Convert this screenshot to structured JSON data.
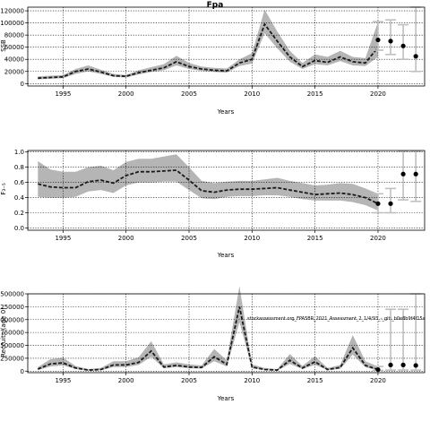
{
  "chart_data": [
    {
      "type": "line",
      "title": "Fpa",
      "xlabel": "Years",
      "ylabel": "SSB",
      "xlim": [
        1992.2,
        2023.7
      ],
      "ylim": [
        -4000,
        126000
      ],
      "xticks": [
        1995,
        2000,
        2005,
        2010,
        2015,
        2020
      ],
      "xtick_labels": [
        "1995",
        "2000",
        "2005",
        "2010",
        "2015",
        "2020"
      ],
      "yticks": [
        0,
        20000,
        40000,
        60000,
        80000,
        100000,
        120000
      ],
      "ytick_labels": [
        "0",
        "20000",
        "40000",
        "60000",
        "80000",
        "100000",
        "120000"
      ],
      "grid": true,
      "series": [
        {
          "style": "dashed line with grey confidence band",
          "x": [
            1993,
            1994,
            1995,
            1996,
            1997,
            1998,
            1999,
            2000,
            2001,
            2002,
            2003,
            2004,
            2005,
            2006,
            2007,
            2008,
            2009,
            2010,
            2011,
            2012,
            2013,
            2014,
            2015,
            2016,
            2017,
            2018,
            2019,
            2020
          ],
          "values": [
            9000,
            10000,
            11000,
            20000,
            24000,
            19000,
            13000,
            12000,
            18000,
            22000,
            26000,
            36000,
            28000,
            24000,
            22000,
            21000,
            34000,
            40000,
            98000,
            70000,
            44000,
            28000,
            38000,
            35000,
            44000,
            36000,
            34000,
            60000
          ],
          "lower": [
            7000,
            8000,
            9000,
            16000,
            20000,
            16000,
            11000,
            10000,
            15000,
            19000,
            22000,
            30000,
            24000,
            21000,
            19000,
            18000,
            29000,
            33000,
            83000,
            58000,
            36000,
            24000,
            32000,
            30000,
            37000,
            30000,
            29000,
            44000
          ],
          "upper": [
            12000,
            13000,
            14000,
            24000,
            30000,
            23000,
            16000,
            14000,
            22000,
            27000,
            32000,
            46000,
            34000,
            28000,
            26000,
            25000,
            40000,
            50000,
            122000,
            86000,
            54000,
            34000,
            48000,
            44000,
            54000,
            44000,
            42000,
            102000
          ]
        },
        {
          "style": "points with error bars",
          "x": [
            2020,
            2021,
            2022,
            2023
          ],
          "values": [
            72000,
            70000,
            62000,
            45000
          ],
          "lower": [
            55000,
            48000,
            40000,
            20000
          ],
          "upper": [
            102000,
            105000,
            97000,
            130000
          ]
        }
      ]
    },
    {
      "type": "line",
      "title": "",
      "xlabel": "Years",
      "ylabel": "F₃₋₅",
      "xlim": [
        1992.2,
        2023.7
      ],
      "ylim": [
        -0.03,
        1.02
      ],
      "xticks": [
        1995,
        2000,
        2005,
        2010,
        2015,
        2020
      ],
      "xtick_labels": [
        "1995",
        "2000",
        "2005",
        "2010",
        "2015",
        "2020"
      ],
      "yticks": [
        0,
        0.2,
        0.4,
        0.6,
        0.8,
        1.0
      ],
      "ytick_labels": [
        "0.0",
        "0.2",
        "0.4",
        "0.6",
        "0.8",
        "1.0"
      ],
      "grid": true,
      "series": [
        {
          "style": "dashed line with grey confidence band",
          "x": [
            1993,
            1994,
            1995,
            1996,
            1997,
            1998,
            1999,
            2000,
            2001,
            2002,
            2003,
            2004,
            2005,
            2006,
            2007,
            2008,
            2009,
            2010,
            2011,
            2012,
            2013,
            2014,
            2015,
            2016,
            2017,
            2018,
            2019,
            2020
          ],
          "values": [
            0.58,
            0.54,
            0.53,
            0.53,
            0.61,
            0.63,
            0.59,
            0.69,
            0.74,
            0.74,
            0.75,
            0.76,
            0.63,
            0.49,
            0.47,
            0.5,
            0.51,
            0.51,
            0.52,
            0.53,
            0.5,
            0.47,
            0.44,
            0.45,
            0.46,
            0.44,
            0.4,
            0.32
          ],
          "lower": [
            0.41,
            0.4,
            0.4,
            0.41,
            0.48,
            0.5,
            0.46,
            0.56,
            0.6,
            0.6,
            0.61,
            0.61,
            0.5,
            0.39,
            0.38,
            0.41,
            0.42,
            0.42,
            0.43,
            0.43,
            0.41,
            0.38,
            0.36,
            0.36,
            0.36,
            0.34,
            0.3,
            0.23
          ],
          "upper": [
            0.88,
            0.77,
            0.74,
            0.74,
            0.8,
            0.82,
            0.76,
            0.87,
            0.91,
            0.91,
            0.94,
            0.97,
            0.8,
            0.62,
            0.59,
            0.61,
            0.62,
            0.62,
            0.64,
            0.66,
            0.62,
            0.59,
            0.56,
            0.57,
            0.59,
            0.58,
            0.52,
            0.45
          ]
        },
        {
          "style": "points with error bars",
          "x": [
            2020,
            2021,
            2022,
            2023
          ],
          "values": [
            0.32,
            0.32,
            0.71,
            0.71
          ],
          "lower": [
            0.2,
            0.2,
            0.37,
            0.35
          ],
          "upper": [
            0.45,
            0.52,
            1.01,
            1.01
          ]
        }
      ]
    },
    {
      "type": "line",
      "title": "",
      "xlabel": "Years",
      "ylabel": "Recruits (age 0)",
      "xlim": [
        1992.2,
        2023.7
      ],
      "ylim": [
        -30000,
        1500000
      ],
      "xticks": [
        1995,
        2000,
        2005,
        2010,
        2015,
        2020
      ],
      "xtick_labels": [
        "1995",
        "2000",
        "2005",
        "2010",
        "2015",
        "2020"
      ],
      "yticks": [
        0,
        250000,
        500000,
        750000,
        1000000,
        1250000,
        1500000
      ],
      "ytick_labels": [
        "0",
        "250000",
        "500000",
        "750000",
        "1000000",
        "1250000",
        "1500000"
      ],
      "grid": true,
      "annotation": "stockassessment.org_FPA5BR_2021_Assessment_2_1/4/93_-_git:_b0e8b9f4f15a",
      "series": [
        {
          "style": "dashed line with grey confidence band",
          "x": [
            1993,
            1994,
            1995,
            1996,
            1997,
            1998,
            1999,
            2000,
            2001,
            2002,
            2003,
            2004,
            2005,
            2006,
            2007,
            2008,
            2009,
            2010,
            2011,
            2012,
            2013,
            2014,
            2015,
            2016,
            2017,
            2018,
            2019,
            2020
          ],
          "values": [
            40000,
            140000,
            160000,
            60000,
            20000,
            30000,
            120000,
            120000,
            170000,
            390000,
            80000,
            110000,
            80000,
            70000,
            280000,
            130000,
            1250000,
            80000,
            30000,
            20000,
            210000,
            60000,
            180000,
            30000,
            70000,
            450000,
            110000,
            30000
          ],
          "lower": [
            20000,
            90000,
            110000,
            40000,
            10000,
            15000,
            80000,
            80000,
            120000,
            280000,
            55000,
            80000,
            55000,
            50000,
            190000,
            90000,
            950000,
            55000,
            20000,
            10000,
            140000,
            40000,
            120000,
            20000,
            45000,
            320000,
            75000,
            15000
          ],
          "upper": [
            80000,
            230000,
            260000,
            100000,
            40000,
            60000,
            190000,
            190000,
            270000,
            580000,
            130000,
            170000,
            130000,
            110000,
            430000,
            210000,
            1650000,
            130000,
            60000,
            40000,
            330000,
            100000,
            290000,
            60000,
            120000,
            700000,
            190000,
            90000
          ]
        },
        {
          "style": "points with error bars",
          "x": [
            2020,
            2021,
            2022,
            2023
          ],
          "values": [
            30000,
            120000,
            120000,
            110000
          ],
          "lower": [
            15000,
            20000,
            20000,
            20000
          ],
          "upper": [
            90000,
            1200000,
            1200000,
            1500000
          ]
        }
      ]
    }
  ]
}
